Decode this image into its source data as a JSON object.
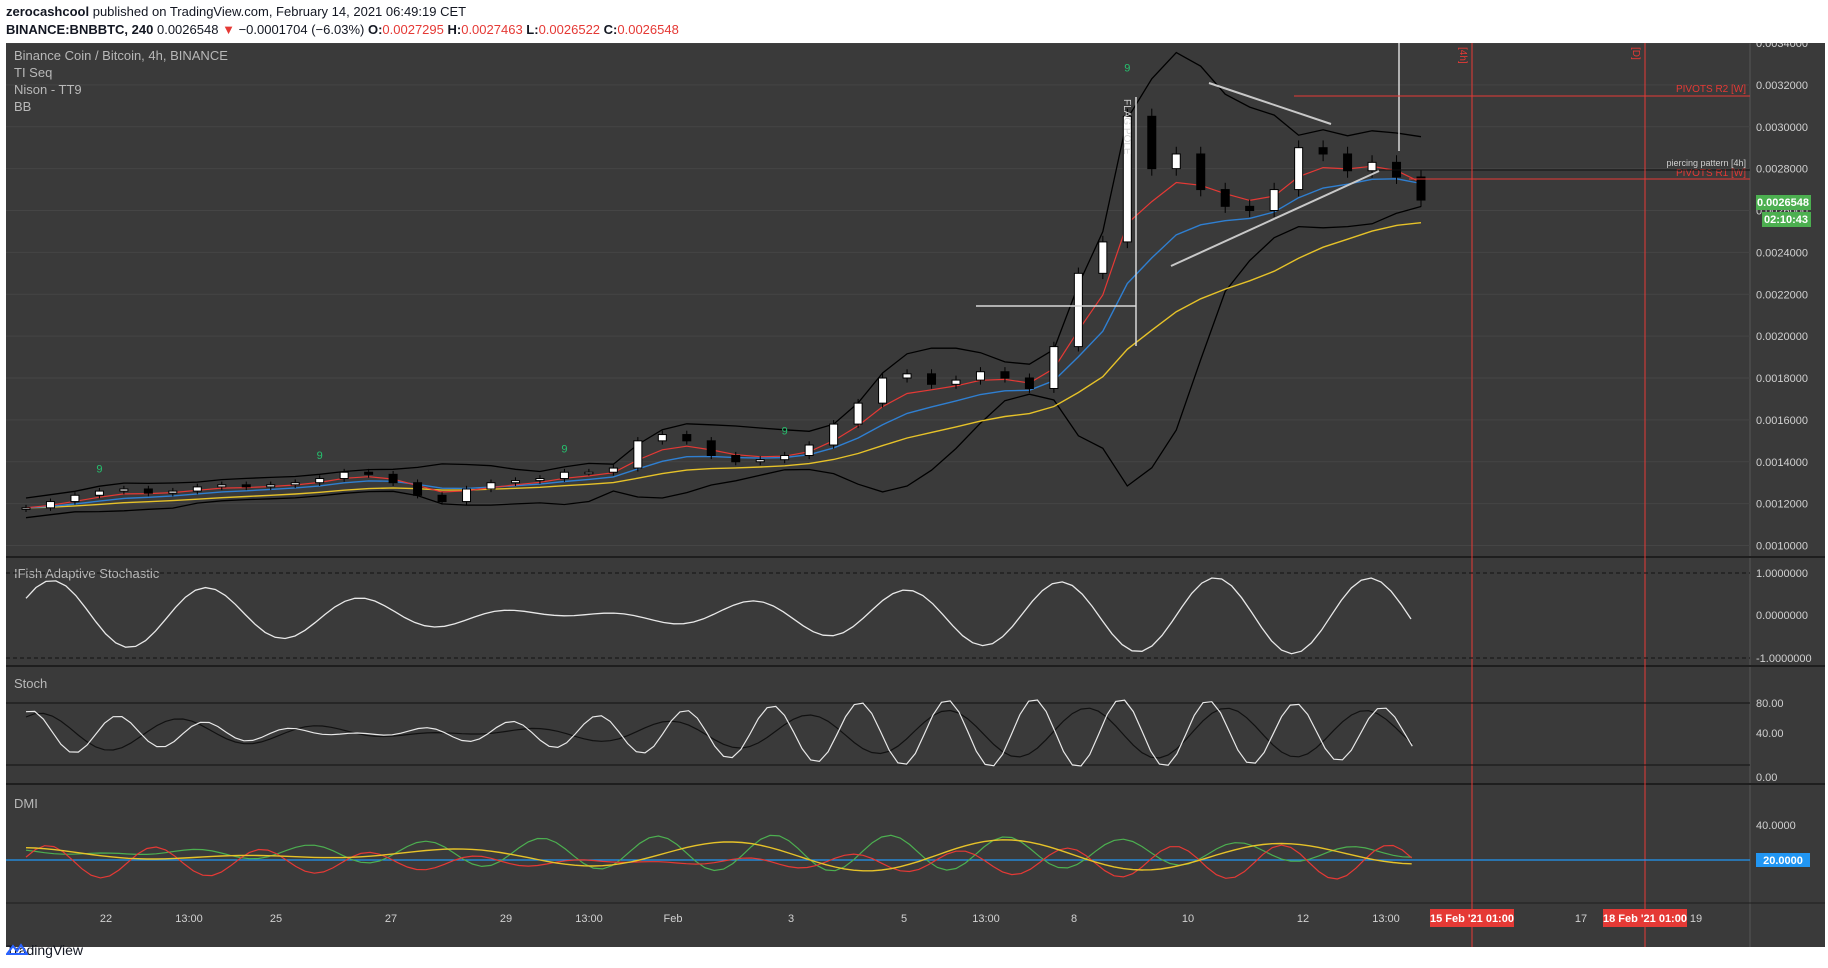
{
  "header": {
    "line1_user": "zerocashcool",
    "line1_rest": "published on TradingView.com, February 14, 2021 06:49:19 CET",
    "symbol": "BINANCE:BNBBTC, 240",
    "price": "0.0026548",
    "change": "−0.0001704 (−6.03%)",
    "o_label": "O:",
    "o_val": "0.0027295",
    "h_label": "H:",
    "h_val": "0.0027463",
    "l_label": "L:",
    "l_val": "0.0026522",
    "c_label": "C:",
    "c_val": "0.0026548"
  },
  "legend": {
    "title": "Binance Coin / Bitcoin, 4h, BINANCE",
    "ind1": "TI Seq",
    "ind2": "Nison - TT9",
    "ind3": "BB"
  },
  "panes": {
    "ifish": "IFish Adaptive Stochastic",
    "stoch": "Stoch",
    "dmi": "DMI"
  },
  "annotations": {
    "flag_pole": "FLAG POLE",
    "pivots_r2": "PIVOTS R2 [W]",
    "pivots_r1": "PIVOTS R1 [W]",
    "piercing": "piercing pattern [4h]",
    "marker_4h": "[4h]",
    "marker_d": "[D]",
    "price_tag": "0.0026548",
    "countdown": "02:10:43",
    "seq_nine": "9"
  },
  "axes": {
    "price_ticks": [
      "0.0034000",
      "0.0032000",
      "0.0030000",
      "0.0028000",
      "0.0026000",
      "0.0024000",
      "0.0022000",
      "0.0020000",
      "0.0018000",
      "0.0016000",
      "0.0014000",
      "0.0012000",
      "0.0010000"
    ],
    "ifish_ticks": [
      "1.0000000",
      "0.0000000",
      "-1.0000000"
    ],
    "stoch_ticks": [
      "80.00",
      "40.00",
      "0.00"
    ],
    "dmi_ticks": [
      "40.0000",
      "20.0000"
    ],
    "time_ticks": [
      "22",
      "13:00",
      "25",
      "27",
      "29",
      "13:00",
      "Feb",
      "3",
      "5",
      "13:00",
      "8",
      "10",
      "12",
      "13:00",
      "17",
      "19"
    ],
    "time_flag1": "15 Feb '21   01:00",
    "time_flag2": "18 Feb '21   01:00"
  },
  "colors": {
    "bg": "#3a3a3a",
    "grid": "#454545",
    "ema_fast": "#e53935",
    "ema_mid": "#2f7fd1",
    "ema_slow": "#e6c229",
    "bb": "#000000",
    "seq": "#26c06e",
    "dmi_plus": "#4caf50",
    "dmi_minus": "#e53935",
    "adx": "#e6c229",
    "price_green": "#4caf50"
  },
  "footer": {
    "brand": "TradingView"
  },
  "chart_data": {
    "type": "candlestick",
    "title": "Binance Coin / Bitcoin, 4h, BINANCE",
    "ylim": [
      0.00095,
      0.0034
    ],
    "series": [
      {
        "name": "Close (approx.)",
        "values": [
          0.00118,
          0.00121,
          0.00124,
          0.00126,
          0.00127,
          0.00125,
          0.00126,
          0.00128,
          0.00129,
          0.00128,
          0.00129,
          0.0013,
          0.00132,
          0.00135,
          0.00134,
          0.0013,
          0.00124,
          0.00121,
          0.00127,
          0.0013,
          0.00131,
          0.00132,
          0.00135,
          0.00135,
          0.00137,
          0.0015,
          0.00153,
          0.0015,
          0.00143,
          0.0014,
          0.00141,
          0.00143,
          0.00148,
          0.00158,
          0.00168,
          0.0018,
          0.00182,
          0.00177,
          0.00179,
          0.00183,
          0.0018,
          0.00175,
          0.00195,
          0.0023,
          0.00245,
          0.00305,
          0.0028,
          0.00287,
          0.0027,
          0.00262,
          0.0026,
          0.0027,
          0.0029,
          0.00287,
          0.00279,
          0.00283,
          0.00276,
          0.00265
        ]
      }
    ],
    "last_close": 0.0026548
  }
}
